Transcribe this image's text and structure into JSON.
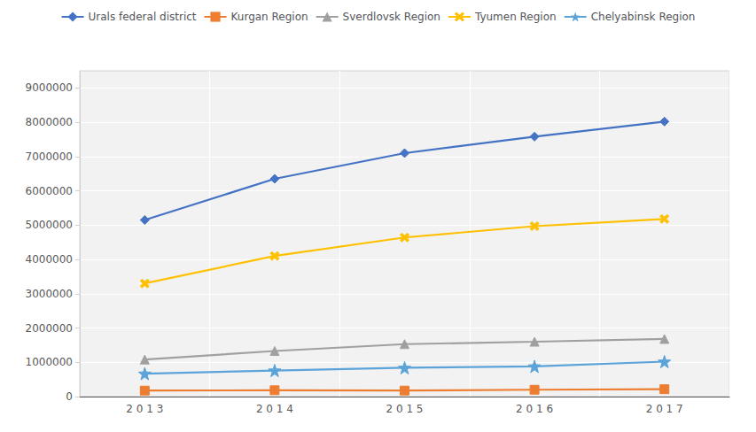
{
  "chart_data": {
    "type": "line",
    "categories": [
      "2 0 1 3",
      "2 0 1 4",
      "2 0 1 5",
      "2 0 1 6",
      "2 0 1 7"
    ],
    "series": [
      {
        "name": "Urals federal district",
        "color": "#4472C4",
        "marker": "diamond",
        "values": [
          5150000,
          6350000,
          7100000,
          7580000,
          8020000
        ]
      },
      {
        "name": "Kurgan Region",
        "color": "#ED7D31",
        "marker": "square",
        "values": [
          175000,
          185000,
          175000,
          200000,
          215000
        ]
      },
      {
        "name": "Sverdlovsk Region",
        "color": "#A0A0A0",
        "marker": "triangle",
        "values": [
          1080000,
          1330000,
          1530000,
          1600000,
          1680000
        ]
      },
      {
        "name": "Tyumen Region",
        "color": "#FFC000",
        "marker": "x",
        "values": [
          3300000,
          4100000,
          4640000,
          4970000,
          5180000
        ]
      },
      {
        "name": "Chelyabinsk Region",
        "color": "#5BA3D9",
        "marker": "star",
        "values": [
          670000,
          760000,
          840000,
          880000,
          1020000
        ]
      }
    ],
    "ylim": [
      0,
      9500000
    ],
    "yticks": [
      0,
      1000000,
      2000000,
      3000000,
      4000000,
      5000000,
      6000000,
      7000000,
      8000000,
      9000000
    ],
    "grid": true,
    "legend": "top"
  }
}
